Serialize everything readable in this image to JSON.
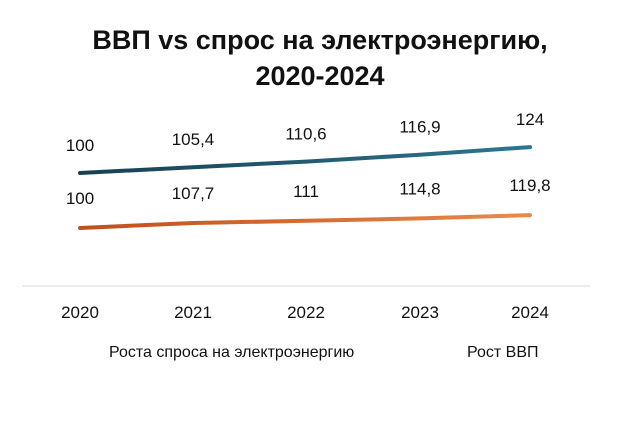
{
  "chart_data": {
    "type": "line",
    "title_line1": "ВВП vs спрос на электроэнергию,",
    "title_line2": "2020-2024",
    "categories": [
      "2020",
      "2021",
      "2022",
      "2023",
      "2024"
    ],
    "series": [
      {
        "name": "Рост ВВП",
        "values": [
          100,
          105.4,
          110.6,
          116.9,
          124
        ],
        "labels": [
          "100",
          "105,4",
          "110,6",
          "116,9",
          "124"
        ],
        "color": "#1c4f66"
      },
      {
        "name": "Роста спроса на электроэнергию",
        "values": [
          100,
          107.7,
          111,
          114.8,
          119.8
        ],
        "labels": [
          "100",
          "107,7",
          "111",
          "114,8",
          "119,8"
        ],
        "color": "#c85f24"
      }
    ],
    "legend": [
      "Роста спроса на электроэнергию",
      "Рост ВВП"
    ],
    "legend_position": "bottom",
    "grid": false
  }
}
